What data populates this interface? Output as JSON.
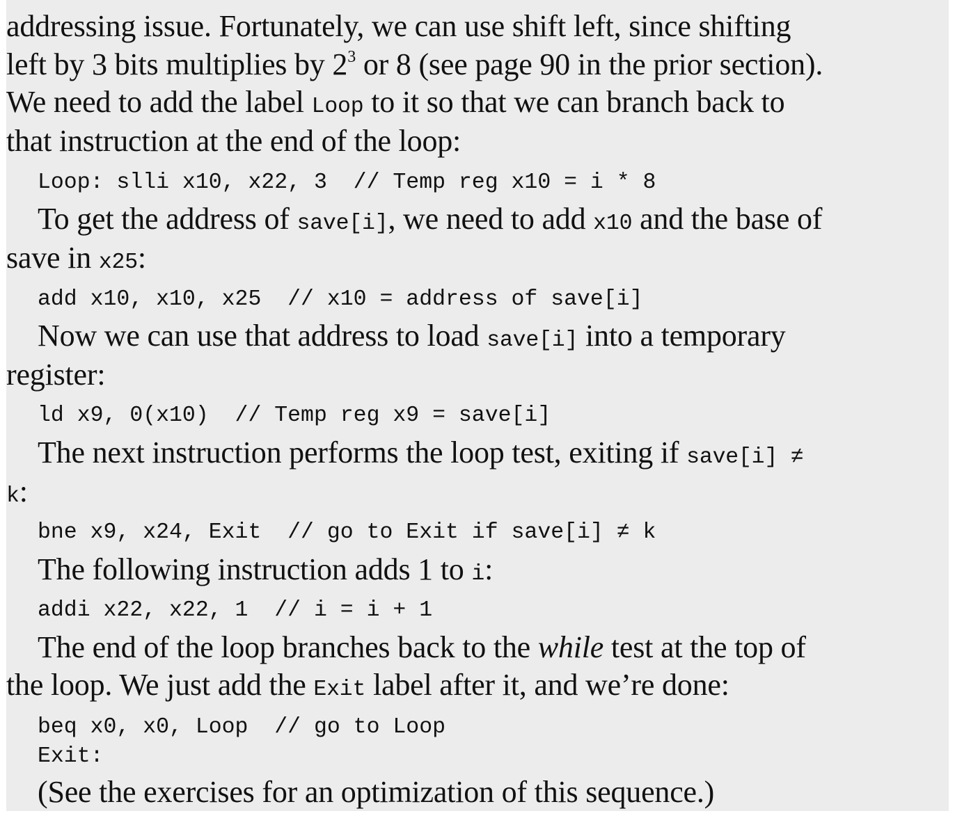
{
  "p1": {
    "l1": "addressing issue. Fortunately, we can use shift left, since shifting",
    "l2a": "left by 3 bits multiplies by 2",
    "l2sup": "3",
    "l2b": " or 8 (see page 90 in the prior section).",
    "l3a": "We need to add the label ",
    "l3code": "Loop",
    "l3b": " to it so that we can branch back to",
    "l4": "that instruction at the end of the loop:"
  },
  "code1": "Loop: slli x10, x22, 3  // Temp reg x10 = i * 8",
  "p2": {
    "l1a": "To get the address of ",
    "l1code1": "save[i]",
    "l1b": ", we need to add ",
    "l1code2": "x10",
    "l1c": " and the base of",
    "l2a": "save in ",
    "l2code": "x25",
    "l2b": ":"
  },
  "code2": "add x10, x10, x25  // x10 = address of save[i]",
  "p3": {
    "l1a": "Now we can use that address to load ",
    "l1code": "save[i]",
    "l1b": " into a temporary",
    "l2": "register:"
  },
  "code3": "ld x9, 0(x10)  // Temp reg x9 = save[i]",
  "p4": {
    "l1a": "The next instruction performs the loop test, exiting if ",
    "l1code": "save[i] ≠",
    "l2code": "k",
    "l2b": ":"
  },
  "code4": "bne x9, x24, Exit  // go to Exit if save[i] ≠ k",
  "p5": {
    "l1a": "The following instruction adds 1 to ",
    "l1code": "i",
    "l1b": ":"
  },
  "code5": "addi x22, x22, 1  // i = i + 1",
  "p6": {
    "l1a": "The end of the loop branches back to the ",
    "l1em": "while",
    "l1b": " test at the top of",
    "l2a": "the loop. We just add the ",
    "l2code": "Exit",
    "l2b": " label after it, and we’re done:"
  },
  "code6a": "beq x0, x0, Loop  // go to Loop",
  "code6b": "Exit:",
  "p7": "(See the exercises for an optimization of this sequence.)"
}
